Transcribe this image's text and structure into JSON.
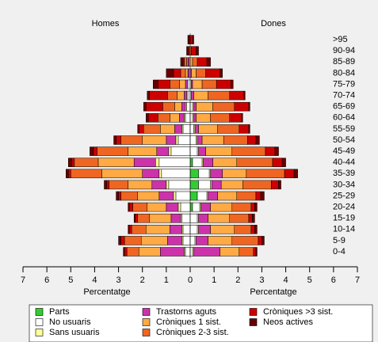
{
  "chart_data": {
    "type": "pyramid",
    "panel_titles": [
      "Homes",
      "Dones"
    ],
    "xlabels": [
      "Percentatge",
      "Percentatge"
    ],
    "categories": [
      "0-4",
      "5-9",
      "10-14",
      "15-19",
      "20-24",
      "25-29",
      "30-34",
      "35-39",
      "40-44",
      "45-49",
      "50-54",
      "55-59",
      "60-64",
      "65-69",
      "70-74",
      "75-79",
      "80-84",
      "85-89",
      "90-94",
      ">95"
    ],
    "xlim": [
      -7,
      7
    ],
    "xticks": [
      {
        "value": -7,
        "label": "7"
      },
      {
        "value": -6,
        "label": "6"
      },
      {
        "value": -5,
        "label": "5"
      },
      {
        "value": -4,
        "label": "4"
      },
      {
        "value": -3,
        "label": "3"
      },
      {
        "value": -2,
        "label": "2"
      },
      {
        "value": -1,
        "label": "1"
      },
      0,
      1,
      2,
      3,
      4,
      5,
      6,
      7
    ],
    "series": [
      {
        "name": "Parts",
        "color": "#33cc33",
        "values_homes": [
          0,
          0,
          0,
          0,
          0,
          0,
          0,
          0,
          0,
          0,
          0,
          0,
          0,
          0,
          0,
          0,
          0,
          0,
          0,
          0
        ],
        "values_dones": [
          0,
          0,
          0,
          0,
          0.1,
          0.3,
          0.35,
          0.35,
          0.1,
          0,
          0,
          0,
          0,
          0,
          0,
          0,
          0,
          0,
          0,
          0
        ]
      },
      {
        "name": "No usuaris",
        "color": "#ffffff",
        "values_homes": [
          0.2,
          0.3,
          0.3,
          0.35,
          0.4,
          0.6,
          0.9,
          1.2,
          1.3,
          0.8,
          0.5,
          0.3,
          0.2,
          0.15,
          0.1,
          0.1,
          0.05,
          0.05,
          0,
          0
        ],
        "values_dones": [
          0.1,
          0.2,
          0.3,
          0.3,
          0.3,
          0.4,
          0.5,
          0.45,
          0.4,
          0.3,
          0.25,
          0.15,
          0.1,
          0.1,
          0.05,
          0.05,
          0,
          0,
          0,
          0
        ]
      },
      {
        "name": "Sans usuaris",
        "color": "#ffff99",
        "values_homes": [
          0.05,
          0.05,
          0.05,
          0.05,
          0.1,
          0.1,
          0.1,
          0.1,
          0.15,
          0.1,
          0.1,
          0.05,
          0.05,
          0.05,
          0.05,
          0,
          0,
          0,
          0,
          0
        ],
        "values_dones": [
          0.05,
          0.05,
          0.05,
          0.05,
          0.05,
          0.05,
          0.05,
          0.05,
          0.05,
          0.05,
          0.05,
          0.05,
          0.05,
          0.05,
          0,
          0,
          0,
          0,
          0,
          0
        ]
      },
      {
        "name": "Trastorns aguts",
        "color": "#cc33aa",
        "values_homes": [
          1.0,
          0.6,
          0.5,
          0.4,
          0.5,
          0.6,
          0.6,
          0.7,
          0.9,
          0.5,
          0.4,
          0.3,
          0.2,
          0.15,
          0.1,
          0.1,
          0.05,
          0.05,
          0,
          0
        ],
        "values_dones": [
          1.1,
          0.5,
          0.5,
          0.4,
          0.4,
          0.4,
          0.4,
          0.5,
          0.4,
          0.3,
          0.2,
          0.15,
          0.1,
          0.1,
          0.1,
          0.05,
          0.05,
          0,
          0,
          0
        ]
      },
      {
        "name": "Cròniques 1 sist.",
        "color": "#ffaa44",
        "values_homes": [
          0.9,
          1.1,
          1.0,
          0.9,
          0.8,
          0.9,
          1.0,
          1.7,
          1.5,
          1.2,
          1.0,
          0.6,
          0.4,
          0.3,
          0.3,
          0.25,
          0.1,
          0.05,
          0,
          0
        ],
        "values_dones": [
          0.8,
          1.0,
          1.0,
          0.9,
          0.9,
          0.8,
          0.9,
          1.0,
          1.0,
          1.1,
          0.9,
          0.8,
          0.6,
          0.7,
          0.6,
          0.4,
          0.2,
          0.1,
          0,
          0
        ]
      },
      {
        "name": "Cròniques 2-3 sist.",
        "color": "#ee6622",
        "values_homes": [
          0.5,
          0.7,
          0.6,
          0.5,
          0.6,
          0.7,
          0.8,
          1.3,
          1.0,
          1.3,
          0.9,
          0.7,
          0.5,
          0.5,
          0.4,
          0.4,
          0.2,
          0.1,
          0.05,
          0
        ],
        "values_dones": [
          0.6,
          1.1,
          0.7,
          0.8,
          0.8,
          0.8,
          1.2,
          1.6,
          1.5,
          1.4,
          1.0,
          0.9,
          0.8,
          0.9,
          0.9,
          0.6,
          0.4,
          0.2,
          0.05,
          0
        ]
      },
      {
        "name": "Cròniques >3 sist.",
        "color": "#cc0000",
        "values_homes": [
          0.1,
          0.15,
          0.1,
          0.1,
          0.15,
          0.1,
          0.1,
          0.1,
          0.1,
          0.15,
          0.2,
          0.2,
          0.4,
          0.7,
          0.75,
          0.5,
          0.3,
          0.05,
          0.05,
          0.05
        ],
        "values_dones": [
          0.1,
          0.15,
          0.15,
          0.15,
          0.15,
          0.2,
          0.3,
          0.4,
          0.4,
          0.4,
          0.35,
          0.4,
          0.5,
          0.6,
          0.6,
          0.6,
          0.6,
          0.4,
          0.2,
          0.1
        ]
      },
      {
        "name": "Neos actives",
        "color": "#660000",
        "values_homes": [
          0.05,
          0.1,
          0.05,
          0.05,
          0.05,
          0.1,
          0.1,
          0.1,
          0.15,
          0.15,
          0.1,
          0.05,
          0.1,
          0.1,
          0.1,
          0.2,
          0.3,
          0.1,
          0.05,
          0.05
        ],
        "values_dones": [
          0.05,
          0.1,
          0.1,
          0.1,
          0.1,
          0.15,
          0.1,
          0.15,
          0.15,
          0.15,
          0.15,
          0.05,
          0.05,
          0.05,
          0.05,
          0.1,
          0.1,
          0.15,
          0.1,
          0.05
        ]
      }
    ]
  }
}
